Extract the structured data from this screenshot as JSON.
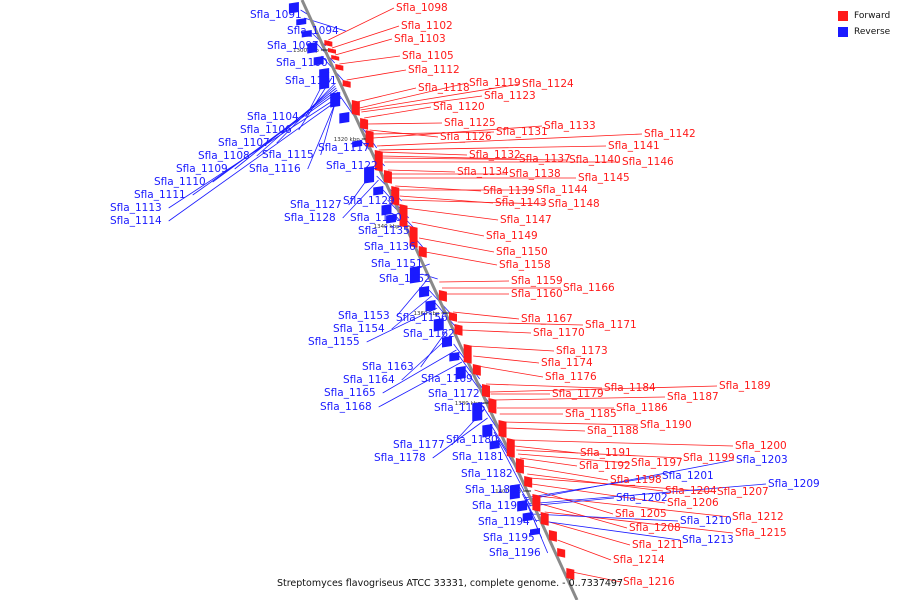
{
  "genome": {
    "caption": "Streptomyces flavogriseus ATCC 33331, complete genome. - 0..7337497"
  },
  "legend": {
    "forward": {
      "label": "Forward",
      "color": "#ff1a1a"
    },
    "reverse": {
      "label": "Reverse",
      "color": "#1a1aff"
    }
  },
  "backbone_color": "#8a8a8a",
  "ticks": [
    "1300 kbp",
    "1320 kbp",
    "1340 kbp",
    "1360 kbp",
    "1380 kbp",
    "1400 kbp"
  ],
  "forward_genes": [
    "Sfla_1098",
    "Sfla_1102",
    "Sfla_1103",
    "Sfla_1105",
    "Sfla_1112",
    "Sfla_1118",
    "Sfla_1119",
    "Sfla_1124",
    "Sfla_1123",
    "Sfla_1120",
    "Sfla_1125",
    "Sfla_1126",
    "Sfla_1131",
    "Sfla_1133",
    "Sfla_1142",
    "Sfla_1141",
    "Sfla_1132",
    "Sfla_1137",
    "Sfla_1140",
    "Sfla_1146",
    "Sfla_1134",
    "Sfla_1138",
    "Sfla_1145",
    "Sfla_1139",
    "Sfla_1144",
    "Sfla_1143",
    "Sfla_1148",
    "Sfla_1147",
    "Sfla_1149",
    "Sfla_1150",
    "Sfla_1158",
    "Sfla_1159",
    "Sfla_1166",
    "Sfla_1160",
    "Sfla_1167",
    "Sfla_1171",
    "Sfla_1170",
    "Sfla_1173",
    "Sfla_1174",
    "Sfla_1176",
    "Sfla_1184",
    "Sfla_1189",
    "Sfla_1179",
    "Sfla_1187",
    "Sfla_1186",
    "Sfla_1185",
    "Sfla_1190",
    "Sfla_1188",
    "Sfla_1200",
    "Sfla_1191",
    "Sfla_1199",
    "Sfla_1197",
    "Sfla_1192",
    "Sfla_1198",
    "Sfla_1204",
    "Sfla_1207",
    "Sfla_1206",
    "Sfla_1205",
    "Sfla_1212",
    "Sfla_1208",
    "Sfla_1215",
    "Sfla_1211",
    "Sfla_1214",
    "Sfla_1216"
  ],
  "reverse_genes": [
    "Sfla_1091",
    "Sfla_1094",
    "Sfla_1097",
    "Sfla_1100",
    "Sfla_1101",
    "Sfla_1104",
    "Sfla_1106",
    "Sfla_1107",
    "Sfla_1117",
    "Sfla_1108",
    "Sfla_1115",
    "Sfla_1109",
    "Sfla_1116",
    "Sfla_1122",
    "Sfla_1110",
    "Sfla_1111",
    "Sfla_1113",
    "Sfla_1114",
    "Sfla_1127",
    "Sfla_1129",
    "Sfla_1128",
    "Sfla_1130",
    "Sfla_1135",
    "Sfla_1136",
    "Sfla_1151",
    "Sfla_1152",
    "Sfla_1153",
    "Sfla_1156",
    "Sfla_1154",
    "Sfla_1162",
    "Sfla_1155",
    "Sfla_1163",
    "Sfla_1164",
    "Sfla_1169",
    "Sfla_1165",
    "Sfla_1172",
    "Sfla_1168",
    "Sfla_1175",
    "Sfla_1180",
    "Sfla_1177",
    "Sfla_1178",
    "Sfla_1181",
    "Sfla_1182",
    "Sfla_1183",
    "Sfla_1193",
    "Sfla_1194",
    "Sfla_1195",
    "Sfla_1196",
    "Sfla_1201",
    "Sfla_1203",
    "Sfla_1209",
    "Sfla_1202",
    "Sfla_1210",
    "Sfla_1213"
  ]
}
